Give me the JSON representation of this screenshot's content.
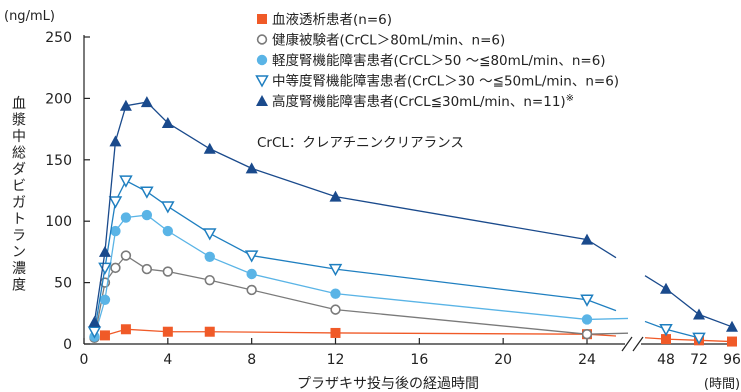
{
  "chart_data": {
    "type": "line",
    "y_unit": "(ng/mL)",
    "x_unit": "(時間)",
    "xlabel": "プラザキサ投与後の経過時間",
    "ylabel": "血漿中総ダビガトラン濃度",
    "ylim": [
      0,
      250
    ],
    "y_ticks": [
      0,
      50,
      100,
      150,
      200,
      250
    ],
    "x_ticks": [
      "0",
      "4",
      "8",
      "12",
      "16",
      "20",
      "24",
      "48",
      "72",
      "96"
    ],
    "x_axis_break": "between 24 and 48",
    "note": "CrCL：クレアチニンクリアランス",
    "series": [
      {
        "name": "血液透析患者(n=6)",
        "color": "#f05a28",
        "marker": "square",
        "x": [
          1,
          2,
          4,
          6,
          12,
          24,
          48,
          72,
          96
        ],
        "y": [
          7,
          12,
          10,
          10,
          9,
          8,
          4,
          3,
          2
        ]
      },
      {
        "name": "健康被験者(CrCL＞80mL/min、n=6)",
        "color": "#7a7a7a",
        "marker": "circle-open",
        "x": [
          0.5,
          1,
          1.5,
          2,
          3,
          4,
          6,
          8,
          12,
          24
        ],
        "y": [
          5,
          50,
          62,
          72,
          61,
          59,
          52,
          44,
          28,
          8
        ]
      },
      {
        "name": "軽度腎機能障害患者(CrCL＞50 ～≦80mL/min、n=6)",
        "color": "#5ab4e6",
        "marker": "circle",
        "x": [
          0.5,
          1,
          1.5,
          2,
          3,
          4,
          6,
          8,
          12,
          24
        ],
        "y": [
          6,
          36,
          92,
          103,
          105,
          92,
          71,
          57,
          41,
          20
        ]
      },
      {
        "name": "中等度腎機能障害患者(CrCL＞30 ～≦50mL/min、n=6)",
        "color": "#1f7fc0",
        "marker": "triangle-down-open",
        "x": [
          0.5,
          1,
          1.5,
          2,
          3,
          4,
          6,
          8,
          12,
          24,
          48,
          72
        ],
        "y": [
          10,
          62,
          116,
          133,
          124,
          112,
          90,
          72,
          61,
          36,
          12,
          5
        ]
      },
      {
        "name": "高度腎機能障害患者(CrCL≦30mL/min、n=11)",
        "note_mark": "※",
        "color": "#1a4a8c",
        "marker": "triangle-up",
        "x": [
          0.5,
          1,
          1.5,
          2,
          3,
          4,
          6,
          8,
          12,
          24,
          48,
          72,
          96
        ],
        "y": [
          18,
          75,
          165,
          194,
          197,
          180,
          159,
          143,
          120,
          85,
          45,
          24,
          14
        ]
      }
    ]
  }
}
